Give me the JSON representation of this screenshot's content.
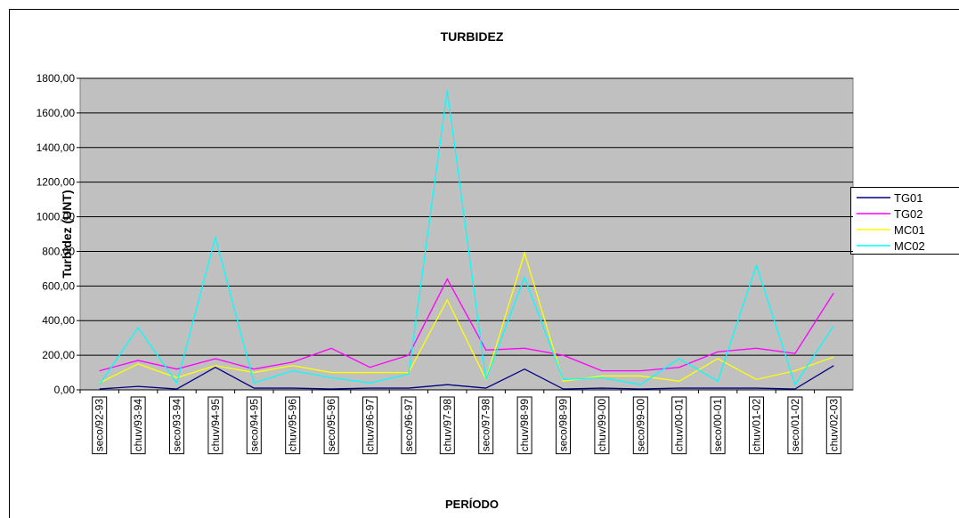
{
  "chart_data": {
    "type": "line",
    "title": "TURBIDEZ",
    "y_label": "Turbidez (UNT)",
    "x_label": "PERÍODO",
    "categories": [
      "seco/92-93",
      "chuv/93-94",
      "seco/93-94",
      "chuv/94-95",
      "seco/94-95",
      "chuv/95-96",
      "seco/95-96",
      "chuv/96-97",
      "seco/96-97",
      "chuv/97-98",
      "seco/97-98",
      "chuv/98-99",
      "seco/98-99",
      "chuv/99-00",
      "seco/99-00",
      "chuv/00-01",
      "seco/00-01",
      "chuv/01-02",
      "seco/01-02",
      "chuv/02-03"
    ],
    "series": [
      {
        "name": "TG01",
        "color": "#000080",
        "values": [
          5,
          20,
          5,
          130,
          10,
          10,
          5,
          10,
          10,
          30,
          10,
          120,
          5,
          10,
          5,
          10,
          10,
          10,
          5,
          140
        ]
      },
      {
        "name": "TG02",
        "color": "#ff00ff",
        "values": [
          110,
          170,
          120,
          180,
          120,
          160,
          240,
          130,
          200,
          640,
          230,
          240,
          200,
          110,
          110,
          130,
          220,
          240,
          210,
          560
        ]
      },
      {
        "name": "MC01",
        "color": "#ffff00",
        "values": [
          40,
          150,
          70,
          140,
          100,
          140,
          100,
          100,
          100,
          520,
          60,
          790,
          50,
          80,
          80,
          50,
          180,
          60,
          110,
          190
        ]
      },
      {
        "name": "MC02",
        "color": "#00ffff",
        "values": [
          30,
          360,
          40,
          880,
          40,
          110,
          70,
          40,
          90,
          1730,
          60,
          650,
          60,
          70,
          30,
          180,
          50,
          720,
          30,
          370
        ]
      }
    ],
    "ylim": [
      0,
      1800
    ],
    "yticks": [
      {
        "value": 0,
        "label": "0,00"
      },
      {
        "value": 200,
        "label": "200,00"
      },
      {
        "value": 400,
        "label": "400,00"
      },
      {
        "value": 600,
        "label": "600,00"
      },
      {
        "value": 800,
        "label": "800,00"
      },
      {
        "value": 1000,
        "label": "1000,00"
      },
      {
        "value": 1200,
        "label": "1200,00"
      },
      {
        "value": 1400,
        "label": "1400,00"
      },
      {
        "value": 1600,
        "label": "1600,00"
      },
      {
        "value": 1800,
        "label": "1800,00"
      }
    ],
    "grid": true
  }
}
